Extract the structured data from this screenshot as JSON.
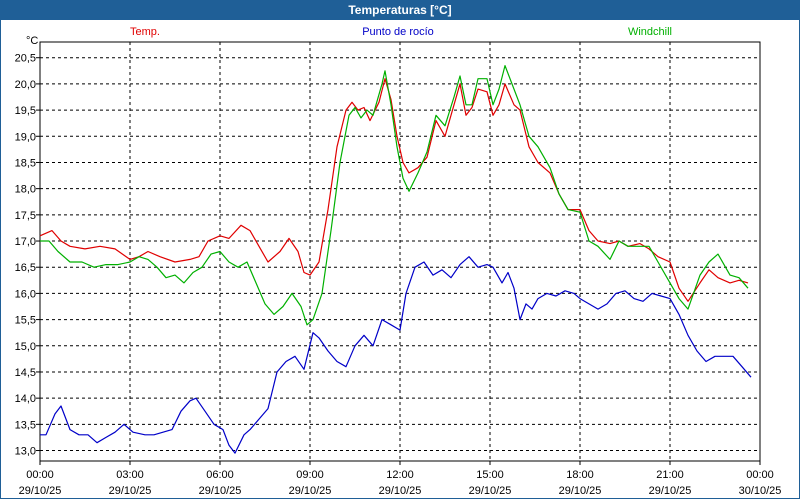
{
  "window": {
    "title": "Temperaturas [°C]"
  },
  "colors": {
    "temp": "#e00000",
    "dew": "#0000c8",
    "wind": "#00b000",
    "grid": "#000000",
    "bar": "#1f5f97"
  },
  "chart_data": {
    "type": "line",
    "ylabel": "°C",
    "ylim": [
      12.8,
      20.8
    ],
    "xlim": [
      0,
      24
    ],
    "grid": true,
    "legend_position": "top",
    "y_ticks": [
      13.0,
      13.5,
      14.0,
      14.5,
      15.0,
      15.5,
      16.0,
      16.5,
      17.0,
      17.5,
      18.0,
      18.5,
      19.0,
      19.5,
      20.0,
      20.5
    ],
    "y_tick_labels": [
      "13,0",
      "13,5",
      "14,0",
      "14,5",
      "15,0",
      "15,5",
      "16,0",
      "16,5",
      "17,0",
      "17,5",
      "18,0",
      "18,5",
      "19,0",
      "19,5",
      "20,0",
      "20,5"
    ],
    "x_ticks": [
      {
        "hour": 0,
        "time": "00:00",
        "date": "29/10/25"
      },
      {
        "hour": 3,
        "time": "03:00",
        "date": "29/10/25"
      },
      {
        "hour": 6,
        "time": "06:00",
        "date": "29/10/25"
      },
      {
        "hour": 9,
        "time": "09:00",
        "date": "29/10/25"
      },
      {
        "hour": 12,
        "time": "12:00",
        "date": "29/10/25"
      },
      {
        "hour": 15,
        "time": "15:00",
        "date": "29/10/25"
      },
      {
        "hour": 18,
        "time": "18:00",
        "date": "29/10/25"
      },
      {
        "hour": 21,
        "time": "21:00",
        "date": "29/10/25"
      },
      {
        "hour": 24,
        "time": "00:00",
        "date": "30/10/25"
      }
    ],
    "series": [
      {
        "name": "Temp.",
        "key": "temp",
        "points": [
          [
            0,
            17.1
          ],
          [
            0.4,
            17.2
          ],
          [
            0.7,
            17.0
          ],
          [
            1.0,
            16.9
          ],
          [
            1.5,
            16.85
          ],
          [
            2.0,
            16.9
          ],
          [
            2.5,
            16.85
          ],
          [
            3.0,
            16.65
          ],
          [
            3.3,
            16.7
          ],
          [
            3.6,
            16.8
          ],
          [
            4.0,
            16.7
          ],
          [
            4.5,
            16.6
          ],
          [
            5.0,
            16.65
          ],
          [
            5.3,
            16.7
          ],
          [
            5.6,
            17.0
          ],
          [
            6.0,
            17.1
          ],
          [
            6.3,
            17.05
          ],
          [
            6.7,
            17.3
          ],
          [
            7.0,
            17.2
          ],
          [
            7.3,
            16.9
          ],
          [
            7.6,
            16.6
          ],
          [
            8.0,
            16.8
          ],
          [
            8.3,
            17.05
          ],
          [
            8.6,
            16.8
          ],
          [
            8.8,
            16.4
          ],
          [
            9.0,
            16.35
          ],
          [
            9.3,
            16.6
          ],
          [
            9.6,
            17.6
          ],
          [
            9.9,
            18.8
          ],
          [
            10.2,
            19.5
          ],
          [
            10.4,
            19.65
          ],
          [
            10.6,
            19.5
          ],
          [
            10.8,
            19.55
          ],
          [
            11.0,
            19.3
          ],
          [
            11.3,
            19.65
          ],
          [
            11.5,
            20.1
          ],
          [
            11.7,
            19.7
          ],
          [
            11.9,
            19.0
          ],
          [
            12.1,
            18.5
          ],
          [
            12.3,
            18.3
          ],
          [
            12.6,
            18.4
          ],
          [
            12.9,
            18.6
          ],
          [
            13.2,
            19.3
          ],
          [
            13.5,
            19.0
          ],
          [
            13.8,
            19.6
          ],
          [
            14.0,
            20.0
          ],
          [
            14.2,
            19.4
          ],
          [
            14.4,
            19.55
          ],
          [
            14.6,
            19.9
          ],
          [
            14.9,
            19.85
          ],
          [
            15.1,
            19.4
          ],
          [
            15.3,
            19.6
          ],
          [
            15.5,
            20.0
          ],
          [
            15.8,
            19.6
          ],
          [
            16.0,
            19.5
          ],
          [
            16.3,
            18.8
          ],
          [
            16.6,
            18.5
          ],
          [
            17.0,
            18.3
          ],
          [
            17.3,
            17.9
          ],
          [
            17.6,
            17.6
          ],
          [
            18.0,
            17.6
          ],
          [
            18.3,
            17.2
          ],
          [
            18.6,
            17.0
          ],
          [
            19.0,
            16.95
          ],
          [
            19.3,
            17.0
          ],
          [
            19.6,
            16.9
          ],
          [
            20.0,
            16.95
          ],
          [
            20.3,
            16.85
          ],
          [
            20.6,
            16.7
          ],
          [
            21.0,
            16.6
          ],
          [
            21.3,
            16.1
          ],
          [
            21.6,
            15.85
          ],
          [
            22.0,
            16.2
          ],
          [
            22.3,
            16.45
          ],
          [
            22.6,
            16.3
          ],
          [
            23.0,
            16.2
          ],
          [
            23.3,
            16.25
          ],
          [
            23.6,
            16.2
          ]
        ]
      },
      {
        "name": "Punto de rocío",
        "key": "dew",
        "points": [
          [
            0,
            13.3
          ],
          [
            0.2,
            13.3
          ],
          [
            0.5,
            13.7
          ],
          [
            0.7,
            13.85
          ],
          [
            1.0,
            13.4
          ],
          [
            1.3,
            13.3
          ],
          [
            1.6,
            13.3
          ],
          [
            1.9,
            13.15
          ],
          [
            2.2,
            13.25
          ],
          [
            2.5,
            13.35
          ],
          [
            2.8,
            13.5
          ],
          [
            3.1,
            13.35
          ],
          [
            3.5,
            13.3
          ],
          [
            3.8,
            13.3
          ],
          [
            4.1,
            13.35
          ],
          [
            4.4,
            13.4
          ],
          [
            4.7,
            13.75
          ],
          [
            5.0,
            13.95
          ],
          [
            5.2,
            14.0
          ],
          [
            5.5,
            13.75
          ],
          [
            5.8,
            13.5
          ],
          [
            6.1,
            13.4
          ],
          [
            6.3,
            13.1
          ],
          [
            6.5,
            12.95
          ],
          [
            6.8,
            13.3
          ],
          [
            7.0,
            13.4
          ],
          [
            7.3,
            13.6
          ],
          [
            7.6,
            13.8
          ],
          [
            7.9,
            14.5
          ],
          [
            8.2,
            14.7
          ],
          [
            8.5,
            14.8
          ],
          [
            8.8,
            14.55
          ],
          [
            9.1,
            15.25
          ],
          [
            9.3,
            15.15
          ],
          [
            9.6,
            14.9
          ],
          [
            9.9,
            14.7
          ],
          [
            10.2,
            14.6
          ],
          [
            10.5,
            15.0
          ],
          [
            10.8,
            15.2
          ],
          [
            11.1,
            15.0
          ],
          [
            11.4,
            15.5
          ],
          [
            11.7,
            15.4
          ],
          [
            12.0,
            15.3
          ],
          [
            12.2,
            16.0
          ],
          [
            12.5,
            16.5
          ],
          [
            12.8,
            16.6
          ],
          [
            13.1,
            16.35
          ],
          [
            13.4,
            16.45
          ],
          [
            13.7,
            16.3
          ],
          [
            14.0,
            16.55
          ],
          [
            14.3,
            16.7
          ],
          [
            14.6,
            16.5
          ],
          [
            14.9,
            16.55
          ],
          [
            15.1,
            16.5
          ],
          [
            15.4,
            16.2
          ],
          [
            15.6,
            16.4
          ],
          [
            15.8,
            16.1
          ],
          [
            16.0,
            15.5
          ],
          [
            16.2,
            15.8
          ],
          [
            16.4,
            15.7
          ],
          [
            16.6,
            15.9
          ],
          [
            16.9,
            16.0
          ],
          [
            17.2,
            15.95
          ],
          [
            17.5,
            16.05
          ],
          [
            17.8,
            16.0
          ],
          [
            18.0,
            15.9
          ],
          [
            18.3,
            15.8
          ],
          [
            18.6,
            15.7
          ],
          [
            18.9,
            15.8
          ],
          [
            19.2,
            16.0
          ],
          [
            19.5,
            16.05
          ],
          [
            19.8,
            15.9
          ],
          [
            20.1,
            15.85
          ],
          [
            20.4,
            16.0
          ],
          [
            20.7,
            15.95
          ],
          [
            21.0,
            15.9
          ],
          [
            21.3,
            15.6
          ],
          [
            21.6,
            15.2
          ],
          [
            21.9,
            14.9
          ],
          [
            22.2,
            14.7
          ],
          [
            22.5,
            14.8
          ],
          [
            22.8,
            14.8
          ],
          [
            23.1,
            14.8
          ],
          [
            23.4,
            14.6
          ],
          [
            23.7,
            14.4
          ]
        ]
      },
      {
        "name": "Windchill",
        "key": "wind",
        "points": [
          [
            0,
            17.0
          ],
          [
            0.3,
            17.0
          ],
          [
            0.6,
            16.8
          ],
          [
            1.0,
            16.6
          ],
          [
            1.4,
            16.6
          ],
          [
            1.8,
            16.5
          ],
          [
            2.2,
            16.55
          ],
          [
            2.6,
            16.55
          ],
          [
            3.0,
            16.6
          ],
          [
            3.3,
            16.7
          ],
          [
            3.6,
            16.65
          ],
          [
            3.9,
            16.5
          ],
          [
            4.2,
            16.3
          ],
          [
            4.5,
            16.35
          ],
          [
            4.8,
            16.2
          ],
          [
            5.1,
            16.4
          ],
          [
            5.4,
            16.5
          ],
          [
            5.7,
            16.75
          ],
          [
            6.0,
            16.8
          ],
          [
            6.3,
            16.6
          ],
          [
            6.6,
            16.5
          ],
          [
            6.9,
            16.6
          ],
          [
            7.2,
            16.2
          ],
          [
            7.5,
            15.8
          ],
          [
            7.8,
            15.6
          ],
          [
            8.1,
            15.75
          ],
          [
            8.4,
            16.0
          ],
          [
            8.7,
            15.75
          ],
          [
            8.9,
            15.4
          ],
          [
            9.1,
            15.5
          ],
          [
            9.4,
            16.0
          ],
          [
            9.7,
            17.2
          ],
          [
            10.0,
            18.5
          ],
          [
            10.3,
            19.4
          ],
          [
            10.5,
            19.55
          ],
          [
            10.7,
            19.35
          ],
          [
            10.9,
            19.5
          ],
          [
            11.1,
            19.4
          ],
          [
            11.4,
            20.0
          ],
          [
            11.5,
            20.25
          ],
          [
            11.7,
            19.6
          ],
          [
            11.9,
            18.8
          ],
          [
            12.1,
            18.2
          ],
          [
            12.3,
            17.95
          ],
          [
            12.6,
            18.3
          ],
          [
            12.9,
            18.7
          ],
          [
            13.2,
            19.4
          ],
          [
            13.5,
            19.2
          ],
          [
            13.8,
            19.75
          ],
          [
            14.0,
            20.15
          ],
          [
            14.2,
            19.6
          ],
          [
            14.4,
            19.6
          ],
          [
            14.6,
            20.1
          ],
          [
            14.9,
            20.1
          ],
          [
            15.1,
            19.6
          ],
          [
            15.3,
            19.9
          ],
          [
            15.5,
            20.35
          ],
          [
            15.8,
            19.9
          ],
          [
            16.0,
            19.6
          ],
          [
            16.3,
            19.0
          ],
          [
            16.6,
            18.8
          ],
          [
            17.0,
            18.4
          ],
          [
            17.3,
            17.9
          ],
          [
            17.6,
            17.6
          ],
          [
            18.0,
            17.55
          ],
          [
            18.3,
            17.0
          ],
          [
            18.6,
            16.9
          ],
          [
            19.0,
            16.65
          ],
          [
            19.3,
            17.0
          ],
          [
            19.6,
            16.9
          ],
          [
            20.0,
            16.9
          ],
          [
            20.3,
            16.9
          ],
          [
            20.6,
            16.6
          ],
          [
            21.0,
            16.2
          ],
          [
            21.3,
            15.9
          ],
          [
            21.6,
            15.7
          ],
          [
            22.0,
            16.35
          ],
          [
            22.3,
            16.6
          ],
          [
            22.6,
            16.75
          ],
          [
            23.0,
            16.35
          ],
          [
            23.3,
            16.3
          ],
          [
            23.6,
            16.1
          ]
        ]
      }
    ]
  }
}
